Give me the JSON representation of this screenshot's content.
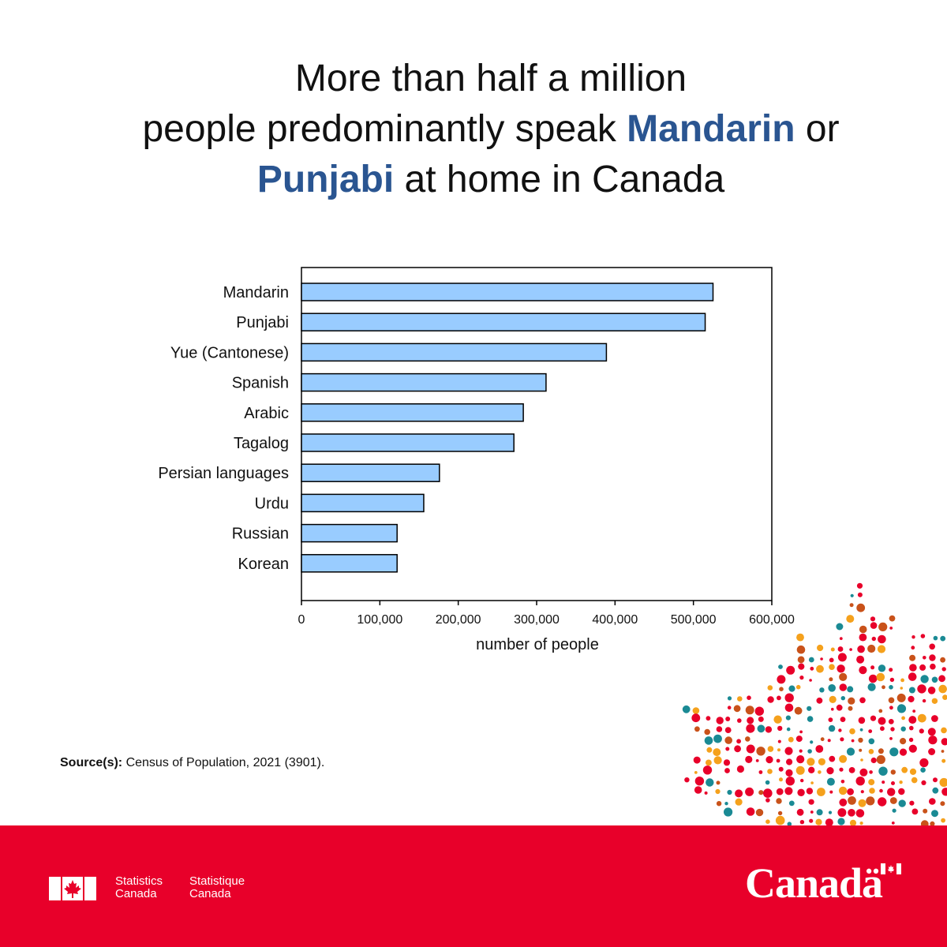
{
  "headline": {
    "line1": "More than half a million",
    "line2_pre": "people predominantly speak ",
    "line2_highlight": "Mandarin",
    "line2_post": " or",
    "line3_highlight": "Punjabi",
    "line3_post": " at home in Canada"
  },
  "colors": {
    "bar_fill": "#99ccff",
    "bar_stroke": "#000000",
    "highlight": "#2a5591",
    "footer_red": "#e8002a"
  },
  "chart_data": {
    "type": "bar",
    "orientation": "horizontal",
    "categories": [
      "Mandarin",
      "Punjabi",
      "Yue (Cantonese)",
      "Spanish",
      "Arabic",
      "Tagalog",
      "Persian languages",
      "Urdu",
      "Russian",
      "Korean"
    ],
    "values": [
      525000,
      515000,
      389000,
      312000,
      283000,
      271000,
      176000,
      156000,
      122000,
      122000
    ],
    "xlabel": "number of people",
    "ylabel": "",
    "xlim": [
      0,
      600000
    ],
    "xticks": [
      0,
      100000,
      200000,
      300000,
      400000,
      500000,
      600000
    ],
    "xtick_labels": [
      "0",
      "100,000",
      "200,000",
      "300,000",
      "400,000",
      "500,000",
      "600,000"
    ],
    "grid": false
  },
  "source": {
    "label": "Source(s):",
    "text": " Census of Population, 2021 (3901)."
  },
  "footer": {
    "fip_en": "Statistics\nCanada",
    "fip_fr": "Statistique\nCanada",
    "wordmark": "Canadä"
  }
}
